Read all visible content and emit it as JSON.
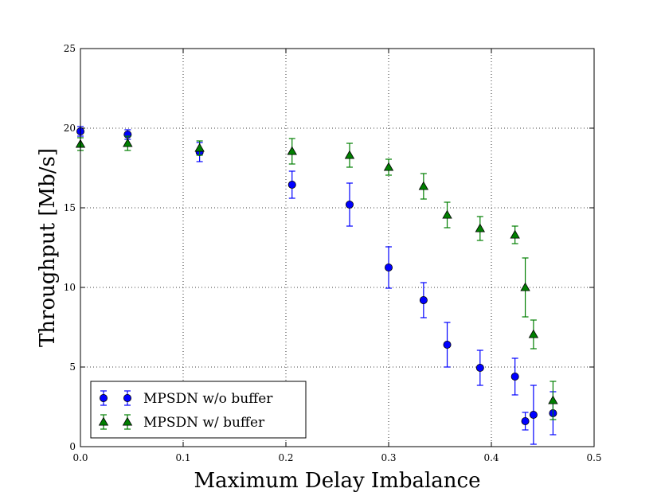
{
  "chart_data": {
    "type": "scatter",
    "title": "",
    "xlabel": "Maximum Delay Imbalance",
    "ylabel": "Throughput [Mb/s]",
    "xlim": [
      0,
      0.5
    ],
    "ylim": [
      0,
      25
    ],
    "xticks": [
      0.0,
      0.1,
      0.2,
      0.3,
      0.4,
      0.5
    ],
    "xtick_labels": [
      "0.0",
      "0.1",
      "0.2",
      "0.3",
      "0.4",
      "0.5"
    ],
    "yticks": [
      0,
      5,
      10,
      15,
      20,
      25
    ],
    "ytick_labels": [
      "0",
      "5",
      "10",
      "15",
      "20",
      "25"
    ],
    "grid": true,
    "legend_position": "bottom-left",
    "series": [
      {
        "name": "MPSDN w/o buffer",
        "marker": "circle",
        "color": "#0000ff",
        "points": [
          {
            "x": 0.0,
            "y": 19.8,
            "err": 0.3
          },
          {
            "x": 0.046,
            "y": 19.6,
            "err": 0.3
          },
          {
            "x": 0.116,
            "y": 18.5,
            "err": 0.6
          },
          {
            "x": 0.206,
            "y": 16.45,
            "err": 0.85
          },
          {
            "x": 0.262,
            "y": 15.2,
            "err": 1.35
          },
          {
            "x": 0.3,
            "y": 11.25,
            "err": 1.3
          },
          {
            "x": 0.334,
            "y": 9.2,
            "err": 1.1
          },
          {
            "x": 0.357,
            "y": 6.4,
            "err": 1.4
          },
          {
            "x": 0.389,
            "y": 4.95,
            "err": 1.1
          },
          {
            "x": 0.423,
            "y": 4.4,
            "err": 1.15
          },
          {
            "x": 0.433,
            "y": 1.6,
            "err": 0.55
          },
          {
            "x": 0.441,
            "y": 2.0,
            "err": 1.85
          },
          {
            "x": 0.46,
            "y": 2.1,
            "err": 1.35
          }
        ]
      },
      {
        "name": "MPSDN w/ buffer",
        "marker": "triangle",
        "color": "#007f00",
        "points": [
          {
            "x": 0.0,
            "y": 19.0,
            "err": 0.4
          },
          {
            "x": 0.046,
            "y": 19.05,
            "err": 0.45
          },
          {
            "x": 0.116,
            "y": 18.75,
            "err": 0.45
          },
          {
            "x": 0.206,
            "y": 18.55,
            "err": 0.8
          },
          {
            "x": 0.262,
            "y": 18.3,
            "err": 0.75
          },
          {
            "x": 0.3,
            "y": 17.55,
            "err": 0.5
          },
          {
            "x": 0.334,
            "y": 16.35,
            "err": 0.8
          },
          {
            "x": 0.357,
            "y": 14.55,
            "err": 0.8
          },
          {
            "x": 0.389,
            "y": 13.7,
            "err": 0.75
          },
          {
            "x": 0.423,
            "y": 13.3,
            "err": 0.55
          },
          {
            "x": 0.433,
            "y": 10.0,
            "err": 1.85
          },
          {
            "x": 0.441,
            "y": 7.05,
            "err": 0.9
          },
          {
            "x": 0.46,
            "y": 2.9,
            "err": 1.2
          }
        ]
      }
    ]
  }
}
